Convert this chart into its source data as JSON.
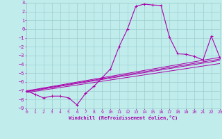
{
  "xlabel": "Windchill (Refroidissement éolien,°C)",
  "xlim": [
    0,
    23
  ],
  "ylim": [
    -9,
    3
  ],
  "xticks": [
    0,
    1,
    2,
    3,
    4,
    5,
    6,
    7,
    8,
    9,
    10,
    11,
    12,
    13,
    14,
    15,
    16,
    17,
    18,
    19,
    20,
    21,
    22,
    23
  ],
  "yticks": [
    3,
    2,
    1,
    0,
    -1,
    -2,
    -3,
    -4,
    -5,
    -6,
    -7,
    -8,
    -9
  ],
  "background_color": "#c0ecec",
  "grid_color": "#9ecece",
  "line_color": "#aa00aa",
  "font_color": "#aa00aa",
  "main_x": [
    0,
    1,
    2,
    3,
    4,
    5,
    6,
    7,
    8,
    9,
    10,
    11,
    12,
    13,
    14,
    15,
    16,
    17,
    18,
    19,
    20,
    21,
    22,
    23
  ],
  "main_y": [
    -7,
    -7.4,
    -7.8,
    -7.6,
    -7.6,
    -7.8,
    -8.6,
    -7.3,
    -6.5,
    -5.5,
    -4.5,
    -2.0,
    0.0,
    2.6,
    2.85,
    2.75,
    2.7,
    -0.9,
    -2.8,
    -2.85,
    -3.1,
    -3.5,
    -0.8,
    -3.2
  ],
  "ref_lines": [
    {
      "x": [
        0,
        23
      ],
      "y": [
        -7.0,
        -3.2
      ]
    },
    {
      "x": [
        0,
        23
      ],
      "y": [
        -7.1,
        -3.55
      ]
    },
    {
      "x": [
        0,
        23
      ],
      "y": [
        -7.2,
        -3.9
      ]
    },
    {
      "x": [
        0,
        23
      ],
      "y": [
        -7.05,
        -3.4
      ]
    }
  ]
}
